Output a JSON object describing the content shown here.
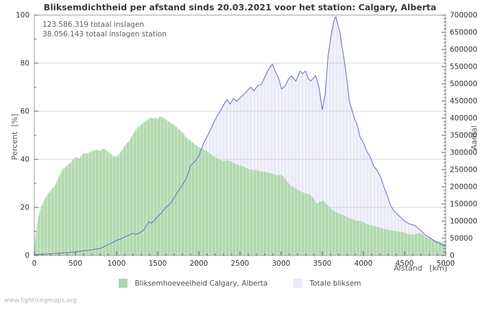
{
  "title": "Bliksemdichtheid per afstand sinds 20.03.2021 voor het station: Calgary, Alberta",
  "annotations": {
    "total_strikes": "123.586.319 totaal inslagen",
    "total_strikes_station": "38.056.143 totaal inslagen station"
  },
  "watermark": "www.lightningmaps.org",
  "colors": {
    "green_fill": "#abd6a9",
    "green_stripe_light": "#c6e5c2",
    "lavender_fill": "#f1f1fb",
    "lavender_stripe": "#e7e7f5",
    "blue_line": "#6b73cb",
    "grid": "#c8c8c8",
    "frame": "#9a9a9a",
    "tick_text": "#2e2e2e"
  },
  "chart_data": {
    "type": "area",
    "title": "Bliksemdichtheid per afstand sinds 20.03.2021 voor het station: Calgary, Alberta",
    "xlabel": "Afstand   [km]",
    "ylabel_left": "Percent  [%]",
    "ylabel_right": "Aantal",
    "xlim": [
      0,
      5000
    ],
    "ylim_left": [
      0,
      100
    ],
    "ylim_right": [
      0,
      700000
    ],
    "x_major_step": 500,
    "x_minor_step": 100,
    "y_left_major_step": 20,
    "y_left_minor_step": 10,
    "y_right_major_step": 50000,
    "y_right_minor_step": 10000,
    "grid_y_left": [
      20,
      40,
      60,
      80
    ],
    "grid_on": true,
    "legend_position": "bottom-center",
    "legend": [
      {
        "label": "Bliksemhoeveelheid Calgary, Alberta",
        "color": "#abd6a9"
      },
      {
        "label": "Totale bliksem",
        "color": "#e9e9f8"
      }
    ],
    "series": [
      {
        "name": "Bliksemhoeveelheid Calgary, Alberta",
        "axis": "left",
        "style": "area-green-striped",
        "points": [
          [
            0,
            3
          ],
          [
            20,
            10
          ],
          [
            50,
            16
          ],
          [
            80,
            20
          ],
          [
            120,
            23
          ],
          [
            160,
            25.5
          ],
          [
            200,
            27
          ],
          [
            250,
            29
          ],
          [
            300,
            33
          ],
          [
            350,
            36
          ],
          [
            400,
            37.5
          ],
          [
            450,
            39
          ],
          [
            500,
            41
          ],
          [
            550,
            40.5
          ],
          [
            600,
            42.5
          ],
          [
            650,
            42.5
          ],
          [
            700,
            43.5
          ],
          [
            750,
            44
          ],
          [
            800,
            43.5
          ],
          [
            830,
            44.5
          ],
          [
            870,
            44
          ],
          [
            920,
            42.5
          ],
          [
            960,
            41.3
          ],
          [
            1000,
            41
          ],
          [
            1040,
            42.5
          ],
          [
            1080,
            44.5
          ],
          [
            1120,
            46.5
          ],
          [
            1160,
            48
          ],
          [
            1200,
            50.5
          ],
          [
            1250,
            53
          ],
          [
            1300,
            54.5
          ],
          [
            1340,
            55.5
          ],
          [
            1380,
            56.5
          ],
          [
            1410,
            57.5
          ],
          [
            1440,
            57
          ],
          [
            1470,
            57.3
          ],
          [
            1500,
            56.8
          ],
          [
            1530,
            58
          ],
          [
            1560,
            57.4
          ],
          [
            1600,
            56.5
          ],
          [
            1650,
            55.3
          ],
          [
            1700,
            54.3
          ],
          [
            1750,
            52.8
          ],
          [
            1800,
            51.3
          ],
          [
            1850,
            48.9
          ],
          [
            1900,
            47.8
          ],
          [
            1950,
            46.3
          ],
          [
            2000,
            45
          ],
          [
            2050,
            44.3
          ],
          [
            2100,
            43.3
          ],
          [
            2150,
            42
          ],
          [
            2200,
            40.8
          ],
          [
            2250,
            40
          ],
          [
            2300,
            39.3
          ],
          [
            2350,
            39.4
          ],
          [
            2400,
            39
          ],
          [
            2450,
            37.9
          ],
          [
            2500,
            37.5
          ],
          [
            2550,
            36.9
          ],
          [
            2600,
            36
          ],
          [
            2650,
            35.6
          ],
          [
            2700,
            35.5
          ],
          [
            2750,
            35
          ],
          [
            2800,
            34.9
          ],
          [
            2850,
            34.4
          ],
          [
            2900,
            34
          ],
          [
            2950,
            33.4
          ],
          [
            3000,
            33.6
          ],
          [
            3040,
            32.3
          ],
          [
            3080,
            30.5
          ],
          [
            3120,
            28.9
          ],
          [
            3160,
            28.2
          ],
          [
            3200,
            27.4
          ],
          [
            3250,
            26.4
          ],
          [
            3300,
            25.8
          ],
          [
            3350,
            25.4
          ],
          [
            3400,
            23.5
          ],
          [
            3430,
            21.5
          ],
          [
            3470,
            22.3
          ],
          [
            3510,
            22.9
          ],
          [
            3550,
            21.5
          ],
          [
            3590,
            20
          ],
          [
            3650,
            18.3
          ],
          [
            3700,
            17.5
          ],
          [
            3750,
            16.9
          ],
          [
            3800,
            16
          ],
          [
            3850,
            15.3
          ],
          [
            3900,
            14.5
          ],
          [
            3950,
            14.4
          ],
          [
            4000,
            14
          ],
          [
            4050,
            12.9
          ],
          [
            4100,
            12.5
          ],
          [
            4150,
            12
          ],
          [
            4200,
            11.6
          ],
          [
            4250,
            11.1
          ],
          [
            4300,
            10.6
          ],
          [
            4350,
            10.4
          ],
          [
            4400,
            10
          ],
          [
            4450,
            9.9
          ],
          [
            4500,
            9.6
          ],
          [
            4550,
            8.9
          ],
          [
            4600,
            8.6
          ],
          [
            4650,
            9.1
          ],
          [
            4700,
            9.3
          ],
          [
            4750,
            7.9
          ],
          [
            4800,
            7.1
          ],
          [
            4850,
            6.6
          ],
          [
            4900,
            6
          ],
          [
            4950,
            5.6
          ],
          [
            5000,
            4.9
          ]
        ]
      },
      {
        "name": "Totale bliksem",
        "axis": "right",
        "style": "area-lavender-blueline",
        "points": [
          [
            0,
            2000
          ],
          [
            100,
            3500
          ],
          [
            200,
            5000
          ],
          [
            300,
            6500
          ],
          [
            400,
            8500
          ],
          [
            500,
            10500
          ],
          [
            600,
            13500
          ],
          [
            700,
            16500
          ],
          [
            800,
            20000
          ],
          [
            850,
            26000
          ],
          [
            900,
            32000
          ],
          [
            950,
            37000
          ],
          [
            1000,
            44000
          ],
          [
            1050,
            48000
          ],
          [
            1100,
            54000
          ],
          [
            1150,
            59000
          ],
          [
            1190,
            64000
          ],
          [
            1230,
            62500
          ],
          [
            1270,
            64500
          ],
          [
            1330,
            74000
          ],
          [
            1370,
            90000
          ],
          [
            1395,
            98000
          ],
          [
            1420,
            94000
          ],
          [
            1450,
            99000
          ],
          [
            1500,
            114000
          ],
          [
            1550,
            125000
          ],
          [
            1600,
            140000
          ],
          [
            1650,
            150000
          ],
          [
            1700,
            168000
          ],
          [
            1750,
            188000
          ],
          [
            1800,
            205000
          ],
          [
            1850,
            226000
          ],
          [
            1900,
            262000
          ],
          [
            1930,
            268000
          ],
          [
            1960,
            276000
          ],
          [
            2000,
            290000
          ],
          [
            2030,
            310000
          ],
          [
            2060,
            328000
          ],
          [
            2100,
            346000
          ],
          [
            2140,
            366000
          ],
          [
            2180,
            386000
          ],
          [
            2220,
            406000
          ],
          [
            2260,
            420000
          ],
          [
            2300,
            438000
          ],
          [
            2340,
            454000
          ],
          [
            2380,
            441000
          ],
          [
            2420,
            457000
          ],
          [
            2460,
            449000
          ],
          [
            2510,
            461000
          ],
          [
            2550,
            470000
          ],
          [
            2590,
            480000
          ],
          [
            2630,
            490000
          ],
          [
            2670,
            480000
          ],
          [
            2715,
            494000
          ],
          [
            2760,
            498000
          ],
          [
            2800,
            519000
          ],
          [
            2840,
            538000
          ],
          [
            2875,
            552000
          ],
          [
            2895,
            557000
          ],
          [
            2920,
            540000
          ],
          [
            2965,
            519000
          ],
          [
            3005,
            485000
          ],
          [
            3050,
            494000
          ],
          [
            3090,
            514000
          ],
          [
            3125,
            523000
          ],
          [
            3180,
            508000
          ],
          [
            3230,
            537000
          ],
          [
            3260,
            529000
          ],
          [
            3295,
            537000
          ],
          [
            3330,
            515000
          ],
          [
            3360,
            508000
          ],
          [
            3420,
            524000
          ],
          [
            3460,
            490000
          ],
          [
            3500,
            424000
          ],
          [
            3535,
            470000
          ],
          [
            3570,
            580000
          ],
          [
            3610,
            645000
          ],
          [
            3645,
            688000
          ],
          [
            3665,
            695000
          ],
          [
            3690,
            672000
          ],
          [
            3715,
            650000
          ],
          [
            3735,
            614000
          ],
          [
            3760,
            580000
          ],
          [
            3790,
            528000
          ],
          [
            3830,
            448000
          ],
          [
            3860,
            424000
          ],
          [
            3890,
            400000
          ],
          [
            3925,
            380000
          ],
          [
            3960,
            344000
          ],
          [
            4000,
            328000
          ],
          [
            4040,
            304000
          ],
          [
            4080,
            288000
          ],
          [
            4125,
            260000
          ],
          [
            4165,
            248000
          ],
          [
            4210,
            228000
          ],
          [
            4250,
            198000
          ],
          [
            4290,
            174000
          ],
          [
            4330,
            146000
          ],
          [
            4375,
            128000
          ],
          [
            4420,
            118000
          ],
          [
            4460,
            110000
          ],
          [
            4500,
            100000
          ],
          [
            4540,
            94000
          ],
          [
            4580,
            90000
          ],
          [
            4625,
            88000
          ],
          [
            4670,
            78000
          ],
          [
            4710,
            70000
          ],
          [
            4750,
            60000
          ],
          [
            4790,
            54000
          ],
          [
            4830,
            48000
          ],
          [
            4875,
            40000
          ],
          [
            4920,
            36000
          ],
          [
            4960,
            30000
          ],
          [
            5000,
            27000
          ]
        ]
      }
    ]
  }
}
